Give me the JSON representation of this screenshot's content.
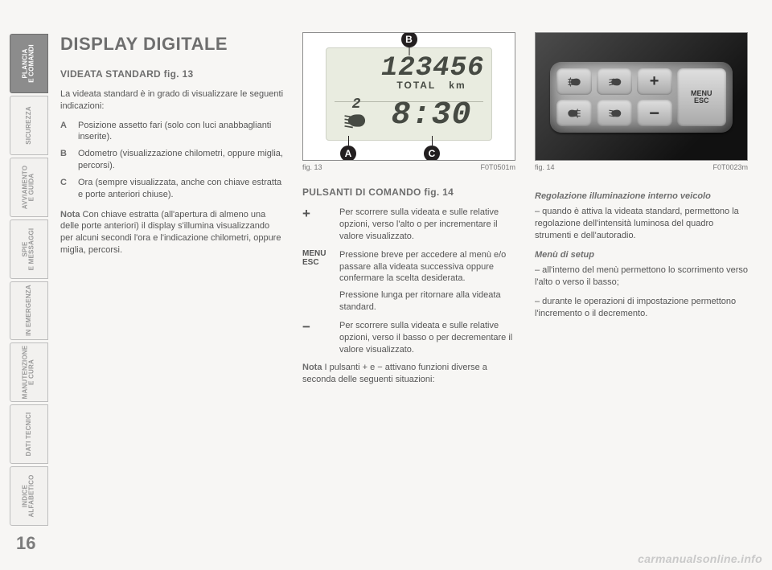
{
  "tabs": [
    {
      "label": "PLANCIA\nE COMANDI",
      "active": true
    },
    {
      "label": "SICUREZZA",
      "active": false
    },
    {
      "label": "AVVIAMENTO\nE GUIDA",
      "active": false
    },
    {
      "label": "SPIE\nE MESSAGGI",
      "active": false
    },
    {
      "label": "IN EMERGENZA",
      "active": false
    },
    {
      "label": "MANUTENZIONE\nE CURA",
      "active": false
    },
    {
      "label": "DATI TECNICI",
      "active": false
    },
    {
      "label": "INDICE\nALFABETICO",
      "active": false
    }
  ],
  "page_number": "16",
  "title": "DISPLAY DIGITALE",
  "subheading1": "VIDEATA STANDARD fig. 13",
  "intro": "La videata standard è in grado di visualizzare le seguenti indicazioni:",
  "defs": [
    {
      "k": "A",
      "v": "Posizione assetto fari (solo con luci anabbaglianti inserite)."
    },
    {
      "k": "B",
      "v": "Odometro (visualizzazione chilometri, oppure miglia, percorsi)."
    },
    {
      "k": "C",
      "v": "Ora (sempre visualizzata, anche con chiave estratta e porte anteriori chiuse)."
    }
  ],
  "note1_label": "Nota",
  "note1_text": " Con chiave estratta (all'apertura di almeno una delle porte anteriori) il display s'illumina visualizzando per alcuni secondi l'ora e l'indicazione chilometri, oppure miglia, percorsi.",
  "fig13": {
    "odometer": "123456",
    "odo_unit_left": "TOTAL",
    "odo_unit_right": "km",
    "clock": "8:30",
    "lamp_level": "2",
    "background_color": "#e9ece0",
    "digit_color": "#464a43",
    "callouts": {
      "A": "A",
      "B": "B",
      "C": "C"
    },
    "caption_left": "fig. 13",
    "caption_right": "F0T0501m"
  },
  "subheading2": "PULSANTI DI COMANDO fig. 14",
  "cmds": [
    {
      "k": "+",
      "v": "Per scorrere sulla videata e sulle relative opzioni, verso l'alto o per incrementare il valore visualizzato."
    },
    {
      "k": "MENU\nESC",
      "v": "Pressione breve per accedere al menù e/o passare alla videata successiva oppure confermare la scelta desiderata.",
      "v2": "Pressione lunga per ritornare alla videata standard."
    },
    {
      "k": "−",
      "v": "Per scorrere sulla videata e sulle relative opzioni, verso il basso o per decrementare il valore visualizzato."
    }
  ],
  "note2_label": "Nota",
  "note2_text": " I pulsanti + e − attivano funzioni diverse a seconda delle seguenti situazioni:",
  "fig14": {
    "caption_left": "fig. 14",
    "caption_right": "F0T0023m",
    "plus": "+",
    "minus": "−",
    "menu": "MENU\nESC",
    "panel_bg": "#2a2a2a",
    "pod_bg": "#a6a6a6",
    "btn_bg": "#d4d4d4",
    "btn_text": "#333333"
  },
  "col3": {
    "h1": "Regolazione illuminazione interno veicolo",
    "p1": "– quando è attiva la videata standard, permettono la regolazione dell'intensità luminosa del quadro strumenti e dell'autoradio.",
    "h2": "Menù di setup",
    "p2": "– all'interno del menù permettono lo scorrimento verso l'alto o verso il basso;",
    "p3": "– durante le operazioni di impostazione permettono l'incremento o il decremento."
  },
  "watermark": "carmanualsonline.info"
}
